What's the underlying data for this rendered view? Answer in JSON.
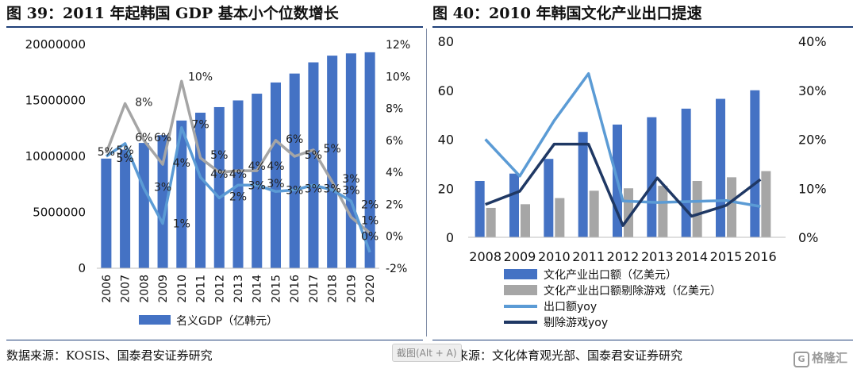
{
  "header": {
    "left_title": "图 39：2011 年起韩国 GDP 基本小个位数增长",
    "right_title": "图 40：2010 年韩国文化产业出口提速"
  },
  "footer": {
    "left_source": "数据来源：KOSIS、国泰君安证券研究",
    "right_source": "数据来源：文化体育观光部、国泰君安证券研究",
    "watermark": "截图(Alt + A)",
    "logo_text": "格隆汇",
    "logo_glyph": "G"
  },
  "colors": {
    "bar_blue": "#4472c4",
    "bar_gray": "#a6a6a6",
    "line_light_blue": "#5b9bd5",
    "line_gray": "#a5a5a5",
    "line_navy": "#1f3864",
    "rule": "#1f3f78"
  },
  "chart_data": [
    {
      "type": "bar",
      "title": "图 39：2011 年起韩国 GDP 基本小个位数增长",
      "categories": [
        "2006",
        "2007",
        "2008",
        "2009",
        "2010",
        "2011",
        "2012",
        "2013",
        "2014",
        "2015",
        "2016",
        "2017",
        "2018",
        "2019",
        "2020"
      ],
      "y_left": {
        "min": 0,
        "max": 20000000,
        "ticks": [
          "0",
          "5000000",
          "10000000",
          "15000000",
          "20000000"
        ]
      },
      "y_right": {
        "min": -2,
        "max": 12,
        "ticks": [
          "-2%",
          "0%",
          "2%",
          "4%",
          "6%",
          "8%",
          "10%",
          "12%"
        ]
      },
      "series": [
        {
          "name": "名义GDP（亿韩元）",
          "kind": "bar",
          "axis": "left",
          "values": [
            9800000,
            10600000,
            11200000,
            11900000,
            13200000,
            13900000,
            14400000,
            15000000,
            15600000,
            16600000,
            17400000,
            18400000,
            19000000,
            19200000,
            19300000
          ]
        },
        {
          "kind": "line",
          "axis": "right",
          "color": "gray",
          "values": [
            5.2,
            8.3,
            6.0,
            4.5,
            9.7,
            4.9,
            4.0,
            4.1,
            4.1,
            6.0,
            5.0,
            5.4,
            3.4,
            1.2,
            0.2
          ]
        },
        {
          "kind": "line",
          "axis": "right",
          "color": "light-blue",
          "values": [
            5.0,
            5.8,
            3.0,
            0.8,
            6.8,
            3.7,
            2.4,
            3.2,
            3.2,
            2.8,
            2.9,
            3.2,
            2.9,
            2.2,
            -1.0
          ]
        }
      ],
      "data_labels": [
        {
          "text": "5%",
          "x": "2006",
          "y": 5.3
        },
        {
          "text": "8%",
          "x": "2008",
          "y": 8.4
        },
        {
          "text": "5%",
          "x": "2007",
          "y": 5.4
        },
        {
          "text": "5%",
          "x": "2007",
          "y": 4.9
        },
        {
          "text": "6%",
          "x": "2008",
          "y": 6.2
        },
        {
          "text": "6%",
          "x": "2009",
          "y": 6.2
        },
        {
          "text": "3%",
          "x": "2009",
          "y": 3.1
        },
        {
          "text": "1%",
          "x": "2010",
          "y": 0.8
        },
        {
          "text": "10%",
          "x": "2011",
          "y": 10.0
        },
        {
          "text": "4%",
          "x": "2010",
          "y": 4.6
        },
        {
          "text": "7%",
          "x": "2011",
          "y": 7.0
        },
        {
          "text": "5%",
          "x": "2012",
          "y": 5.1
        },
        {
          "text": "4%",
          "x": "2012",
          "y": 3.9
        },
        {
          "text": "4%",
          "x": "2013",
          "y": 3.9
        },
        {
          "text": "2%",
          "x": "2013",
          "y": 2.5
        },
        {
          "text": "4%",
          "x": "2014",
          "y": 4.4
        },
        {
          "text": "3%",
          "x": "2014",
          "y": 3.2
        },
        {
          "text": "4%",
          "x": "2015",
          "y": 4.4
        },
        {
          "text": "3%",
          "x": "2015",
          "y": 3.3
        },
        {
          "text": "6%",
          "x": "2016",
          "y": 6.1
        },
        {
          "text": "3%",
          "x": "2016",
          "y": 2.9
        },
        {
          "text": "5%",
          "x": "2017",
          "y": 5.1
        },
        {
          "text": "3%",
          "x": "2017",
          "y": 3.0
        },
        {
          "text": "5%",
          "x": "2018",
          "y": 5.5
        },
        {
          "text": "3%",
          "x": "2018",
          "y": 3.0
        },
        {
          "text": "3%",
          "x": "2019",
          "y": 3.6
        },
        {
          "text": "3%",
          "x": "2019",
          "y": 2.9
        },
        {
          "text": "2%",
          "x": "2020",
          "y": 2.0
        },
        {
          "text": "1%",
          "x": "2020",
          "y": 1.0
        },
        {
          "text": "0%",
          "x": "2020",
          "y": 0.0
        }
      ],
      "legend": [
        "名义GDP（亿韩元）"
      ],
      "legend_position": "bottom"
    },
    {
      "type": "bar",
      "title": "图 40：2010 年韩国文化产业出口提速",
      "categories": [
        "2008",
        "2009",
        "2010",
        "2011",
        "2012",
        "2013",
        "2014",
        "2015",
        "2016"
      ],
      "y_left": {
        "min": 0,
        "max": 80,
        "ticks": [
          "0",
          "20",
          "40",
          "60",
          "80"
        ]
      },
      "y_right": {
        "min": 0,
        "max": 40,
        "ticks": [
          "0%",
          "10%",
          "20%",
          "30%",
          "40%"
        ]
      },
      "series": [
        {
          "name": "文化产业出口额（亿美元）",
          "kind": "bar",
          "axis": "left",
          "color": "blue",
          "values": [
            23,
            26,
            32,
            43,
            46,
            49,
            52.5,
            56.5,
            60
          ]
        },
        {
          "name": "文化产业出口额剔除游戏（亿美元）",
          "kind": "bar",
          "axis": "left",
          "color": "gray",
          "values": [
            12,
            13.5,
            16,
            19,
            20,
            21,
            23,
            24.5,
            27
          ]
        },
        {
          "name": "出口额yoy",
          "kind": "line",
          "axis": "right",
          "color": "light-blue",
          "values": [
            20,
            12.5,
            23.8,
            33.4,
            7.4,
            7.1,
            7.3,
            7.5,
            6.3
          ]
        },
        {
          "name": "剔除游戏yoy",
          "kind": "line",
          "axis": "right",
          "color": "navy",
          "values": [
            6.7,
            9.4,
            19,
            19,
            2.4,
            12.1,
            4.3,
            6.5,
            11.8
          ]
        }
      ],
      "legend": [
        "文化产业出口额（亿美元）",
        "文化产业出口额剔除游戏（亿美元）",
        "出口额yoy",
        "剔除游戏yoy"
      ],
      "legend_position": "bottom"
    }
  ]
}
